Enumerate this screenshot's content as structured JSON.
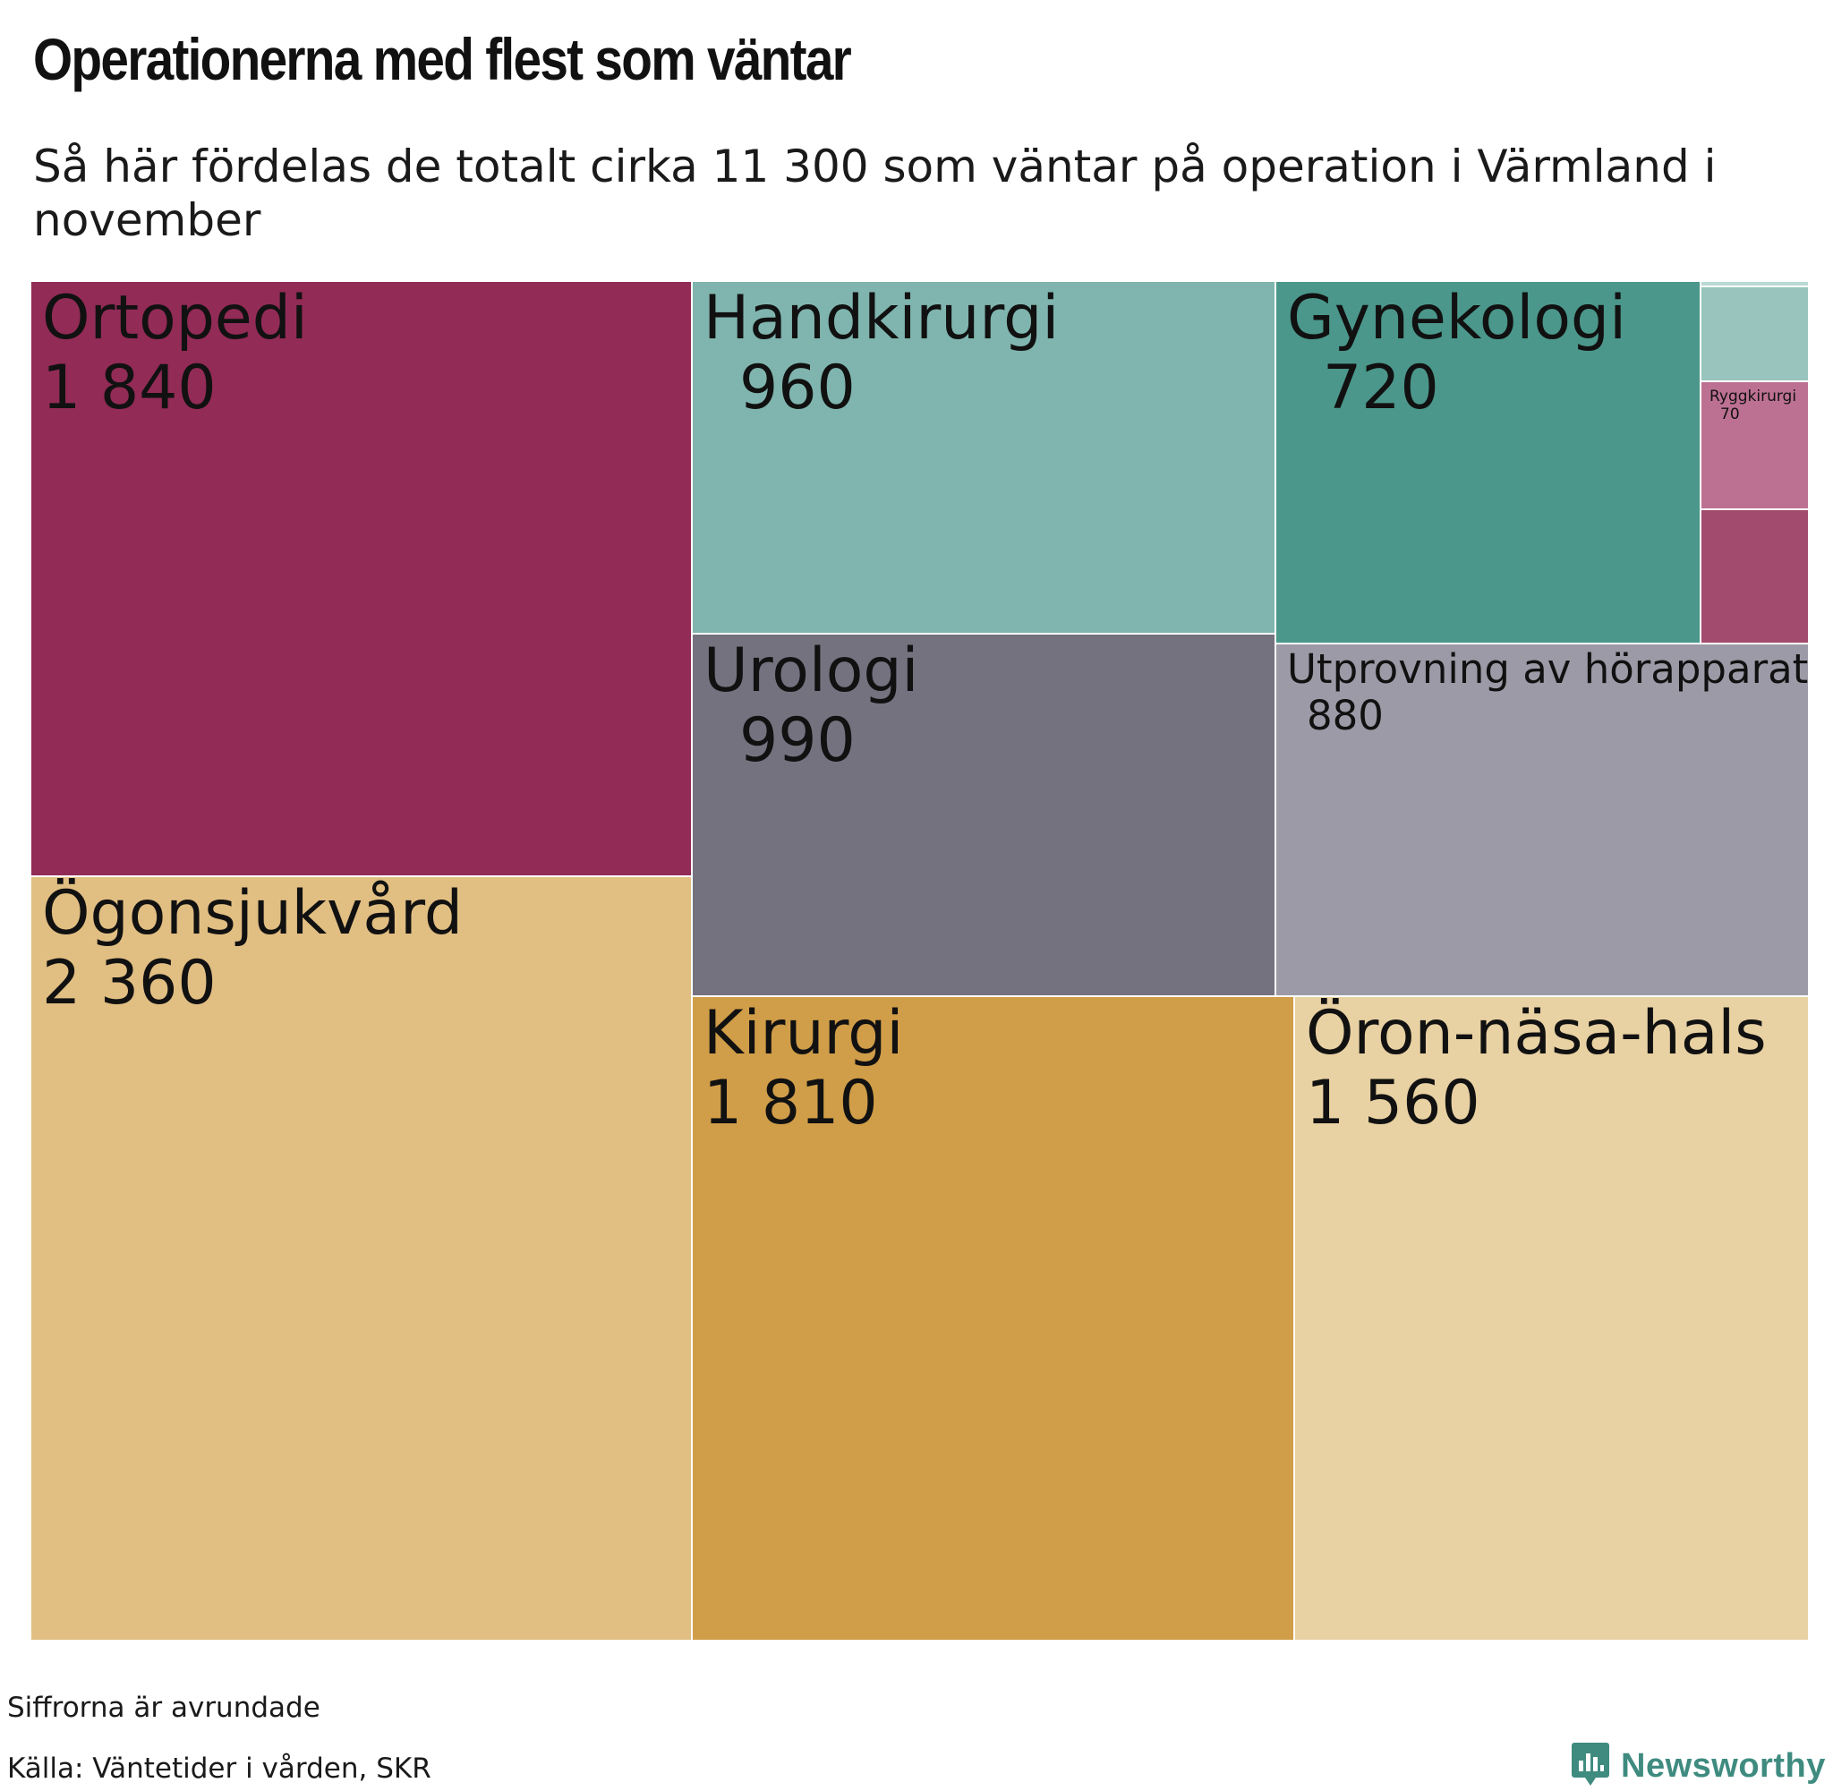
{
  "title": "Operationerna med flest som väntar",
  "subtitle": "Så här fördelas de totalt cirka 11 300 som väntar på operation i Värmland i november",
  "footnote": "Siffrorna är avrundade",
  "source": "Källa: Väntetider i vården, SKR",
  "brand": {
    "name": "Newsworthy",
    "logo_icon": "newsworthy-logo-icon",
    "color": "#3f8b80"
  },
  "chart_data": {
    "type": "treemap",
    "items": [
      {
        "name": "Ortopedi",
        "value": 1840,
        "value_label": "1 840",
        "color": "#922b56"
      },
      {
        "name": "Ögonsjukvård",
        "value": 2360,
        "value_label": "2 360",
        "color": "#e1be82"
      },
      {
        "name": "Handkirurgi",
        "value": 960,
        "value_label": "960",
        "color": "#7fb5ae"
      },
      {
        "name": "Urologi",
        "value": 990,
        "value_label": "990",
        "color": "#74727f"
      },
      {
        "name": "Gynekologi",
        "value": 720,
        "value_label": "720",
        "color": "#4b978b"
      },
      {
        "name": "Utprovning av hörapparat",
        "value": 880,
        "value_label": "880",
        "color": "#9c9aa6"
      },
      {
        "name": "Kirurgi",
        "value": 1810,
        "value_label": "1 810",
        "color": "#d09d48"
      },
      {
        "name": "Öron-näsa-hals",
        "value": 1560,
        "value_label": "1 560",
        "color": "#e8d1a2"
      },
      {
        "name": "Ryggkirurgi",
        "value": 70,
        "value_label": "70",
        "color": "#bd7192"
      },
      {
        "name": "",
        "value": null,
        "value_label": "",
        "color": "#98c4bd"
      },
      {
        "name": "",
        "value": null,
        "value_label": "",
        "color": "#a34b6e"
      },
      {
        "name": "",
        "value": null,
        "value_label": "",
        "color": "#b9d9d4"
      }
    ]
  }
}
